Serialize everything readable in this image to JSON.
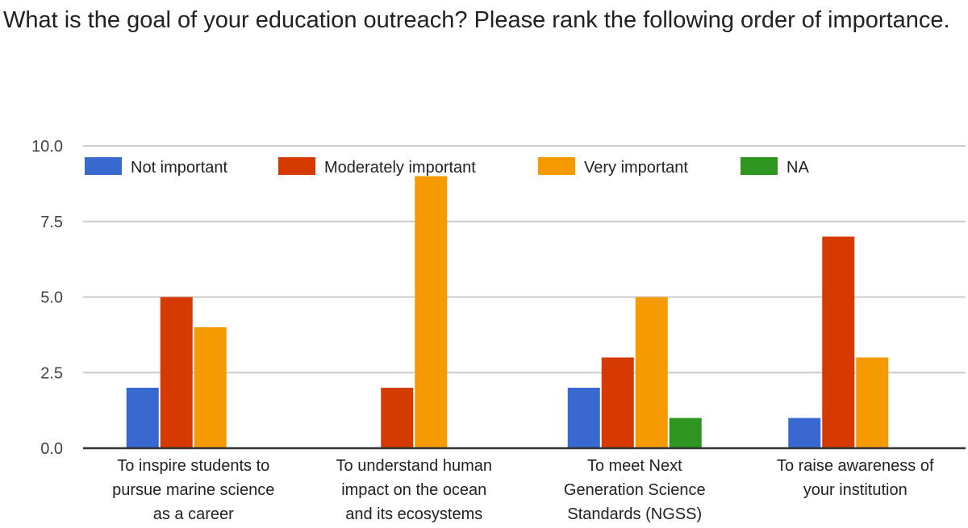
{
  "chart_data": {
    "type": "bar",
    "title": "What is the goal of your education outreach? Please rank the following order of importance.",
    "xlabel": "",
    "ylabel": "",
    "ylim": [
      0,
      10
    ],
    "yticks": [
      "0.0",
      "2.5",
      "5.0",
      "7.5",
      "10.0"
    ],
    "grid": true,
    "legend_position": "top",
    "categories": [
      [
        "To inspire students to",
        "pursue marine science",
        "as a career"
      ],
      [
        "To understand human",
        "impact on the ocean",
        "and its ecosystems"
      ],
      [
        "To meet Next",
        "Generation Science",
        "Standards (NGSS)"
      ],
      [
        "To raise awareness of",
        "your institution"
      ]
    ],
    "series": [
      {
        "name": "Not important",
        "color": "#3869d0",
        "values": [
          2,
          0,
          2,
          1
        ]
      },
      {
        "name": "Moderately important",
        "color": "#d53a00",
        "values": [
          5,
          2,
          3,
          7
        ]
      },
      {
        "name": "Very important",
        "color": "#f59a00",
        "values": [
          4,
          9,
          5,
          3
        ]
      },
      {
        "name": "NA",
        "color": "#2e9620",
        "values": [
          0,
          0,
          1,
          0
        ]
      }
    ]
  }
}
